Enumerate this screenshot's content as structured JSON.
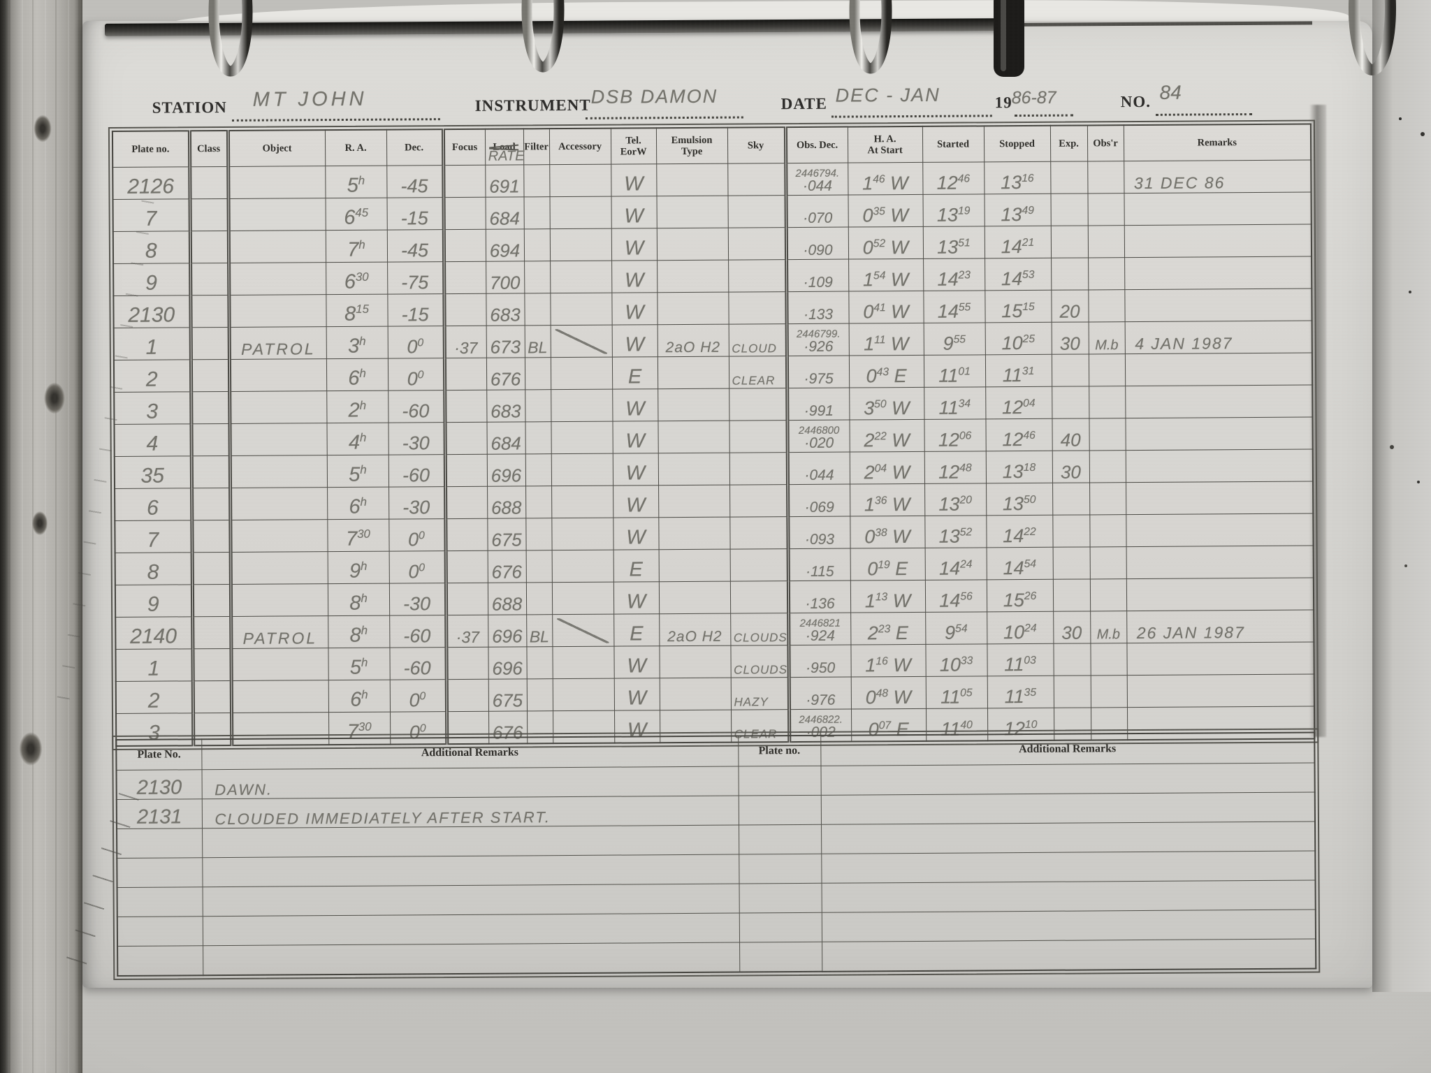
{
  "colors": {
    "paper": "#d6d5d1",
    "ink": "#2e2d2b",
    "pencil": "#73726b"
  },
  "header": {
    "station_label": "STATION",
    "station_value": "MT JOHN",
    "instrument_label": "INSTRUMENT",
    "instrument_value": "DSB DAMON",
    "date_label": "DATE",
    "date_value": "DEC - JAN",
    "year_prefix": "19",
    "year_value": "86-87",
    "no_label": "NO.",
    "no_value": "84"
  },
  "main_table": {
    "columns": [
      "Plate no.",
      "Class",
      "Object",
      "R. A.",
      "Dec.",
      "Focus",
      "Load",
      "Filter",
      "Accessory",
      "Tel.\nEorW",
      "Emulsion\nType",
      "Sky",
      "Obs. Dec.",
      "H. A.\nAt Start",
      "Started",
      "Stopped",
      "Exp.",
      "Obs'r",
      "Remarks"
    ],
    "load_correction": "RATE",
    "rows": [
      [
        "2126",
        "",
        "",
        "5^h",
        "-45",
        "",
        "691",
        "",
        "",
        "W",
        "",
        "",
        "2446794.\n·044",
        "1^46 W",
        "12^46",
        "13^16",
        "",
        "",
        "31 DEC 86"
      ],
      [
        "7",
        "",
        "",
        "6^45",
        "-15",
        "",
        "684",
        "",
        "",
        "W",
        "",
        "",
        "·070",
        "0^35 W",
        "13^19",
        "13^49",
        "",
        "",
        ""
      ],
      [
        "8",
        "",
        "",
        "7^h",
        "-45",
        "",
        "694",
        "",
        "",
        "W",
        "",
        "",
        "·090",
        "0^52 W",
        "13^51",
        "14^21",
        "",
        "",
        ""
      ],
      [
        "9",
        "",
        "",
        "6^30",
        "-75",
        "",
        "700",
        "",
        "",
        "W",
        "",
        "",
        "·109",
        "1^54 W",
        "14^23",
        "14^53",
        "",
        "",
        ""
      ],
      [
        "2130",
        "",
        "",
        "8^15",
        "-15",
        "",
        "683",
        "",
        "",
        "W",
        "",
        "",
        "·133",
        "0^41 W",
        "14^55",
        "15^15",
        "20",
        "",
        ""
      ],
      [
        "1",
        "",
        "PATROL",
        "3^h",
        "0^0",
        "·37",
        "673",
        "BL",
        "/",
        "W",
        "2aO H2",
        "CLOUD",
        "2446799.\n·926",
        "1^11 W",
        "9^55",
        "10^25",
        "30",
        "M.b",
        "4 JAN 1987"
      ],
      [
        "2",
        "",
        "",
        "6^h",
        "0^0",
        "",
        "676",
        "",
        "",
        "E",
        "",
        "CLEAR",
        "·975",
        "0^43 E",
        "11^01",
        "11^31",
        "",
        "",
        ""
      ],
      [
        "3",
        "",
        "",
        "2^h",
        "-60",
        "",
        "683",
        "",
        "",
        "W",
        "",
        "",
        "·991",
        "3^50 W",
        "11^34",
        "12^04",
        "",
        "",
        ""
      ],
      [
        "4",
        "",
        "",
        "4^h",
        "-30",
        "",
        "684",
        "",
        "",
        "W",
        "",
        "",
        "2446800\n·020",
        "2^22 W",
        "12^06",
        "12^46",
        "40",
        "",
        ""
      ],
      [
        "35",
        "",
        "",
        "5^h",
        "-60",
        "",
        "696",
        "",
        "",
        "W",
        "",
        "",
        "·044",
        "2^04 W",
        "12^48",
        "13^18",
        "30",
        "",
        ""
      ],
      [
        "6",
        "",
        "",
        "6^h",
        "-30",
        "",
        "688",
        "",
        "",
        "W",
        "",
        "",
        "·069",
        "1^36 W",
        "13^20",
        "13^50",
        "",
        "",
        ""
      ],
      [
        "7",
        "",
        "",
        "7^30",
        "0^0",
        "",
        "675",
        "",
        "",
        "W",
        "",
        "",
        "·093",
        "0^38 W",
        "13^52",
        "14^22",
        "",
        "",
        ""
      ],
      [
        "8",
        "",
        "",
        "9^h",
        "0^0",
        "",
        "676",
        "",
        "",
        "E",
        "",
        "",
        "·115",
        "0^19 E",
        "14^24",
        "14^54",
        "",
        "",
        ""
      ],
      [
        "9",
        "",
        "",
        "8^h",
        "-30",
        "",
        "688",
        "",
        "",
        "W",
        "",
        "",
        "·136",
        "1^13 W",
        "14^56",
        "15^26",
        "",
        "",
        ""
      ],
      [
        "2140",
        "",
        "PATROL",
        "8^h",
        "-60",
        "·37",
        "696",
        "BL",
        "/",
        "E",
        "2aO H2",
        "CLOUDS",
        "2446821\n·924",
        "2^23 E",
        "9^54",
        "10^24",
        "30",
        "M.b",
        "26 JAN 1987"
      ],
      [
        "1",
        "",
        "",
        "5^h",
        "-60",
        "",
        "696",
        "",
        "",
        "W",
        "",
        "CLOUDS",
        "·950",
        "1^16 W",
        "10^33",
        "11^03",
        "",
        "",
        ""
      ],
      [
        "2",
        "",
        "",
        "6^h",
        "0^0",
        "",
        "675",
        "",
        "",
        "W",
        "",
        "HAZY",
        "·976",
        "0^48 W",
        "11^05",
        "11^35",
        "",
        "",
        ""
      ],
      [
        "3",
        "",
        "",
        "7^30",
        "0^0",
        "",
        "676",
        "",
        "",
        "W",
        "",
        "CLEAR",
        "2446822.\n·002",
        "0^07 E",
        "11^40",
        "12^10",
        "",
        "",
        ""
      ]
    ]
  },
  "remarks_table": {
    "headers": [
      "Plate No.",
      "Additional Remarks",
      "Plate no.",
      "Additional Remarks"
    ],
    "rows": [
      [
        "2130",
        "DAWN.",
        "",
        ""
      ],
      [
        "2131",
        "CLOUDED IMMEDIATELY AFTER START.",
        "",
        ""
      ],
      [
        "",
        "",
        "",
        ""
      ],
      [
        "",
        "",
        "",
        ""
      ],
      [
        "",
        "",
        "",
        ""
      ],
      [
        "",
        "",
        "",
        ""
      ],
      [
        "",
        "",
        "",
        ""
      ]
    ]
  }
}
